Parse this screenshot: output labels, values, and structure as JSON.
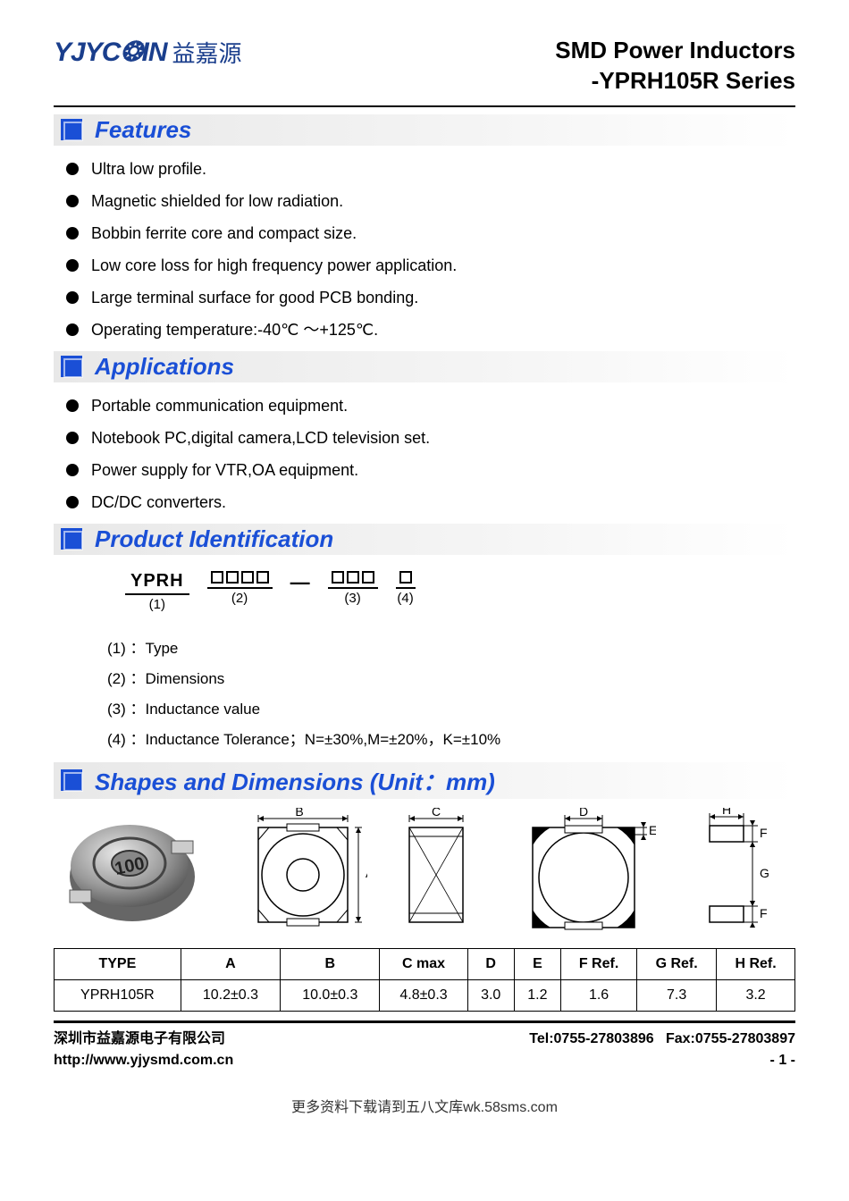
{
  "brand": {
    "logo_en": "YJYC❂IN",
    "logo_cn": "益嘉源",
    "logo_color": "#1a3e8c"
  },
  "title": {
    "line1": "SMD Power Inductors",
    "line2": "-YPRH105R Series"
  },
  "colors": {
    "heading": "#1a4fd6",
    "section_bg": "#e8e8e8",
    "square_fill": "#1a4fd6",
    "text": "#000000",
    "background": "#ffffff"
  },
  "sections": {
    "features": {
      "title": "Features",
      "items": [
        "Ultra low profile.",
        "Magnetic shielded for low radiation.",
        "Bobbin ferrite core and compact size.",
        "Low core loss for high frequency power application.",
        "Large terminal surface for good PCB bonding.",
        "Operating temperature:-40℃ ～+125℃."
      ]
    },
    "applications": {
      "title": "Applications",
      "items": [
        "Portable communication equipment.",
        "Notebook PC,digital camera,LCD television set.",
        "Power supply for VTR,OA equipment.",
        "DC/DC converters."
      ]
    },
    "product_id": {
      "title": "Product Identification",
      "parts": [
        {
          "label": "YPRH",
          "num": "(1)",
          "boxes": 0
        },
        {
          "label": "",
          "num": "(2)",
          "boxes": 4
        },
        {
          "label": "",
          "num": "(3)",
          "boxes": 3
        },
        {
          "label": "",
          "num": "(4)",
          "boxes": 1
        }
      ],
      "legend": [
        "(1) ：Type",
        "(2) ：Dimensions",
        "(3) ：Inductance value",
        "(4) ：Inductance Tolerance；N=±30%,M=±20%，K=±10%"
      ]
    },
    "shapes": {
      "title": "Shapes and Dimensions (Unit：mm)",
      "dim_labels": {
        "A": "A",
        "B": "B",
        "C": "C",
        "D": "D",
        "E": "E",
        "F": "F",
        "G": "G",
        "H": "H"
      },
      "photo_label": "100"
    }
  },
  "dim_table": {
    "columns": [
      "TYPE",
      "A",
      "B",
      "C max",
      "D",
      "E",
      "F Ref.",
      "G Ref.",
      "H Ref."
    ],
    "rows": [
      [
        "YPRH105R",
        "10.2±0.3",
        "10.0±0.3",
        "4.8±0.3",
        "3.0",
        "1.2",
        "1.6",
        "7.3",
        "3.2"
      ]
    ]
  },
  "footer": {
    "company_cn": "深圳市益嘉源电子有限公司",
    "url": "http://www.yjysmd.com.cn",
    "tel": "Tel:0755-27803896",
    "fax": "Fax:0755-27803897",
    "page": "- 1 -"
  },
  "bottom_note": "更多资料下载请到五八文库wk.58sms.com"
}
